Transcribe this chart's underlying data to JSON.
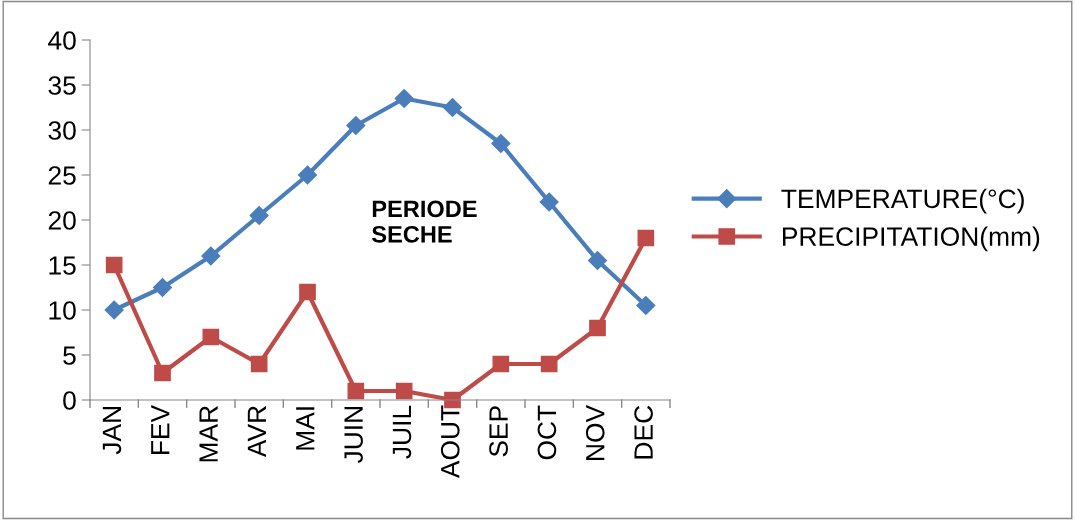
{
  "chart_data": {
    "type": "line",
    "categories": [
      "JAN",
      "FEV",
      "MAR",
      "AVR",
      "MAI",
      "JUIN",
      "JUIL",
      "AOUT",
      "SEP",
      "OCT",
      "NOV",
      "DEC"
    ],
    "series": [
      {
        "name": "TEMPERATURE(°C)",
        "color": "#4a7ebb",
        "marker": "diamond",
        "values": [
          10,
          12.5,
          16,
          20.5,
          25,
          30.5,
          33.5,
          32.5,
          28.5,
          22,
          15.5,
          10.5
        ]
      },
      {
        "name": "PRECIPITATION(mm)",
        "color": "#be4b48",
        "marker": "square",
        "values": [
          15,
          3,
          7,
          4,
          12,
          1,
          1,
          0,
          4,
          4,
          8,
          18
        ]
      }
    ],
    "ylim": [
      0,
      40
    ],
    "yticks": [
      0,
      5,
      10,
      15,
      20,
      25,
      30,
      35,
      40
    ],
    "annotations": [
      "PERIODE\nSECHE"
    ],
    "legend": "right",
    "grid": false,
    "line_style": "solid"
  }
}
